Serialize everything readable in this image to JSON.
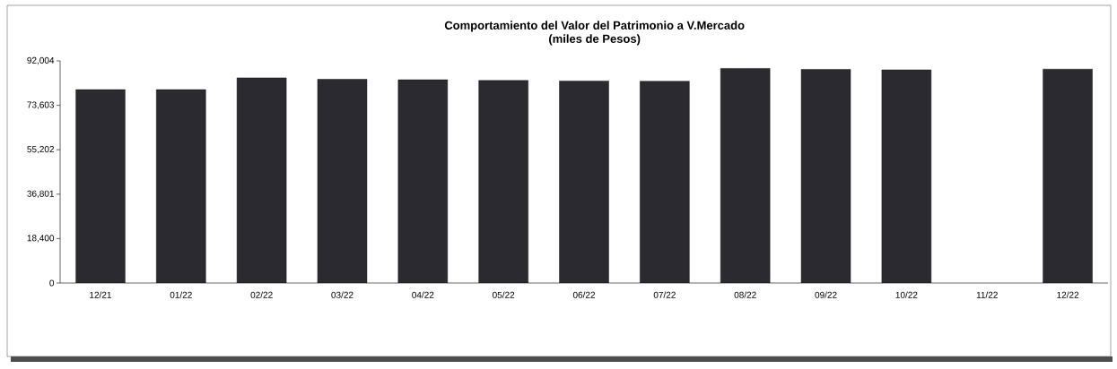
{
  "chart_data": {
    "type": "bar",
    "title": "Comportamiento del Valor del Patrimonio a V.Mercado",
    "subtitle": "(miles de Pesos)",
    "categories": [
      "12/21",
      "01/22",
      "02/22",
      "03/22",
      "04/22",
      "05/22",
      "06/22",
      "07/22",
      "08/22",
      "09/22",
      "10/22",
      "11/22",
      "12/22"
    ],
    "values": [
      80100,
      80100,
      85000,
      84400,
      84200,
      83900,
      83700,
      83600,
      88900,
      88500,
      88300,
      null,
      88600
    ],
    "color": "#2b2a30",
    "ylim": [
      0,
      92004
    ],
    "yticks": [
      {
        "value": 0,
        "label": "0"
      },
      {
        "value": 18400,
        "label": "18,400"
      },
      {
        "value": 36801,
        "label": "36,801"
      },
      {
        "value": 55202,
        "label": "55,202"
      },
      {
        "value": 73603,
        "label": "73,603"
      },
      {
        "value": 92004,
        "label": "92,004"
      }
    ]
  }
}
